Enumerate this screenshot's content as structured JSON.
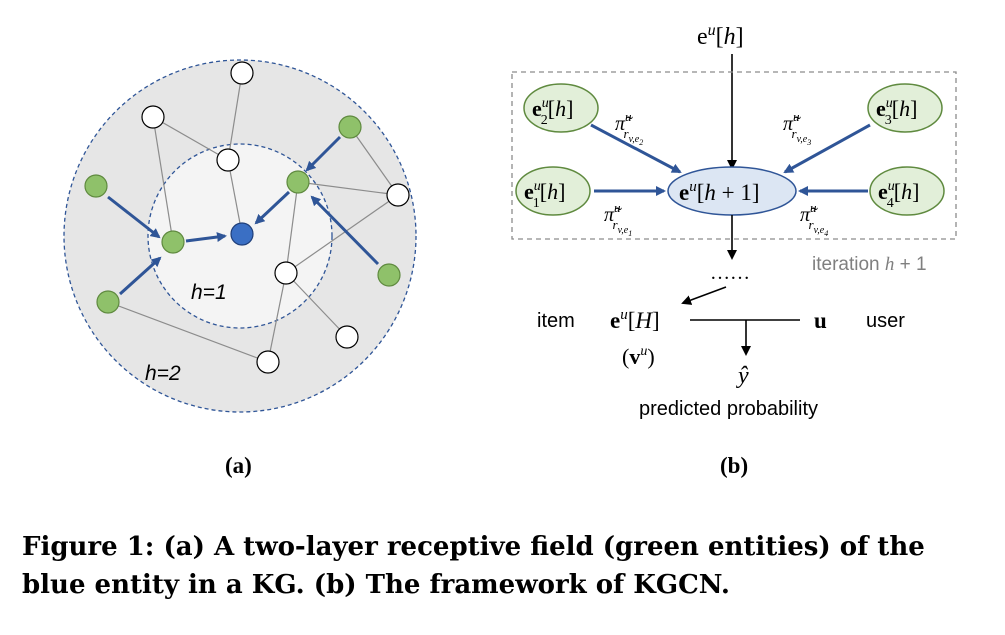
{
  "panel_a": {
    "label": "(a)",
    "h1_label": "h=1",
    "h2_label": "h=2"
  },
  "panel_b": {
    "label": "(b)",
    "input_label": "e^u[h]",
    "center_node": "e^u[h+1]",
    "neighbors": [
      "e1^u[h]",
      "e2^u[h]",
      "e3^u[h]",
      "e4^u[h]"
    ],
    "weights": [
      "π̃^u_{r_{v,e1}}",
      "π̃^u_{r_{v,e2}}",
      "π̃^u_{r_{v,e3}}",
      "π̃^u_{r_{v,e4}}"
    ],
    "iteration_label": "iteration h + 1",
    "dots": "……",
    "item_label": "item",
    "item_vector": "e^u[H]",
    "item_alias": "(v^u)",
    "user_label": "user",
    "user_vector": "u",
    "output_symbol": "ŷ",
    "output_label": "predicted probability"
  },
  "caption": "Figure 1: (a) A two-layer receptive field (green entities) of the blue entity in a KG. (b) The framework of KGCN.",
  "colors": {
    "green_node": "#8fc16a",
    "blue_node": "#3a6fc4",
    "arrow_blue": "#2f5597",
    "outer_field": "#e6e6e6",
    "inner_field": "#f3f3f3",
    "ellipse_green": "#e2efd9",
    "ellipse_blue": "#dce6f3"
  }
}
